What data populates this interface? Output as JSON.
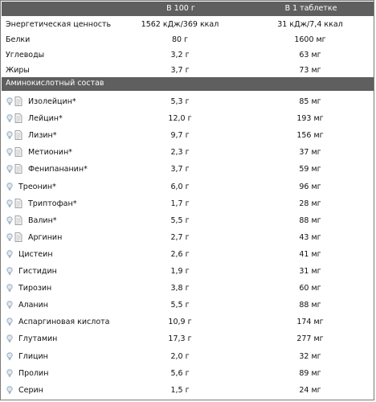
{
  "header": {
    "col1": "",
    "col2": "В 100 г",
    "col3": "В 1 таблетке"
  },
  "summary": [
    {
      "label": "Энергетическая ценность",
      "v100": "1562 кДж/369 ккал",
      "vTab": "31 кДж/7,4 ккал"
    },
    {
      "label": "Белки",
      "v100": "80 г",
      "vTab": "1600 мг"
    },
    {
      "label": "Углеводы",
      "v100": "3,2 г",
      "vTab": "63 мг"
    },
    {
      "label": "Жиры",
      "v100": "3,7 г",
      "vTab": "73 мг"
    }
  ],
  "section_title": "Аминокислотный состав",
  "icons": {
    "info": "info-bulb-icon",
    "doc": "document-icon"
  },
  "amino": [
    {
      "label": "Изолейцин*",
      "v100": "5,3 г",
      "vTab": "85 мг",
      "doc": true
    },
    {
      "label": "Лейцин*",
      "v100": "12,0 г",
      "vTab": "193 мг",
      "doc": true
    },
    {
      "label": "Лизин*",
      "v100": "9,7 г",
      "vTab": "156 мг",
      "doc": true
    },
    {
      "label": "Метионин*",
      "v100": "2,3 г",
      "vTab": "37 мг",
      "doc": true
    },
    {
      "label": "Фенипананин*",
      "v100": "3,7 г",
      "vTab": "59 мг",
      "doc": true
    },
    {
      "label": "Треонин*",
      "v100": "6,0 г",
      "vTab": "96 мг",
      "doc": false
    },
    {
      "label": "Триптофан*",
      "v100": "1,7 г",
      "vTab": "28 мг",
      "doc": true
    },
    {
      "label": "Валин*",
      "v100": "5,5 г",
      "vTab": "88 мг",
      "doc": true
    },
    {
      "label": "Аргинин",
      "v100": "2,7 г",
      "vTab": "43 мг",
      "doc": true
    },
    {
      "label": "Цистеин",
      "v100": "2,6 г",
      "vTab": "41 мг",
      "doc": false
    },
    {
      "label": "Гистидин",
      "v100": "1,9 г",
      "vTab": "31 мг",
      "doc": false
    },
    {
      "label": "Тирозин",
      "v100": "3,8 г",
      "vTab": "60 мг",
      "doc": false
    },
    {
      "label": "Аланин",
      "v100": "5,5 г",
      "vTab": "88 мг",
      "doc": false
    },
    {
      "label": "Аспаргиновая кислота",
      "v100": "10,9 г",
      "vTab": "174 мг",
      "doc": false
    },
    {
      "label": "Глутамин",
      "v100": "17,3 г",
      "vTab": "277 мг",
      "doc": false
    },
    {
      "label": "Глицин",
      "v100": "2,0 г",
      "vTab": "32 мг",
      "doc": false
    },
    {
      "label": "Пролин",
      "v100": "5,6 г",
      "vTab": "89 мг",
      "doc": false
    },
    {
      "label": "Серин",
      "v100": "1,5 г",
      "vTab": "24 мг",
      "doc": false
    }
  ]
}
